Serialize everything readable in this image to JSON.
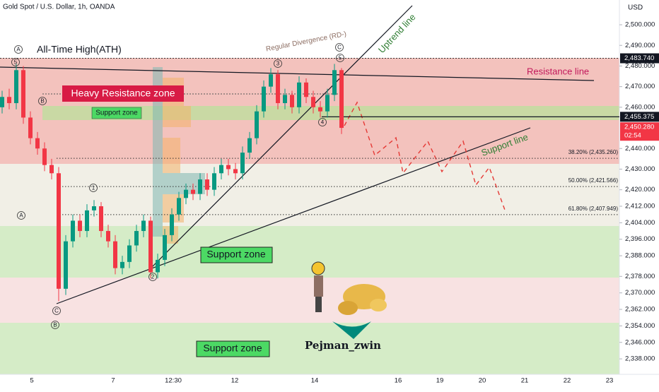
{
  "header": {
    "symbol": "Gold Spot / U.S. Dollar, 1h, OANDA",
    "currency": "USD"
  },
  "chart_data": {
    "type": "candlestick",
    "ylim": [
      2330.5,
      2512
    ],
    "yticks": [
      {
        "value": 2500,
        "label": "2,500.000"
      },
      {
        "value": 2490,
        "label": "2,490.000"
      },
      {
        "value": 2480,
        "label": "2,480.000"
      },
      {
        "value": 2470,
        "label": "2,470.000"
      },
      {
        "value": 2460,
        "label": "2,460.000"
      },
      {
        "value": 2440,
        "label": "2,440.000"
      },
      {
        "value": 2430,
        "label": "2,430.000"
      },
      {
        "value": 2420,
        "label": "2,420.000"
      },
      {
        "value": 2412,
        "label": "2,412.000"
      },
      {
        "value": 2404,
        "label": "2,404.000"
      },
      {
        "value": 2396,
        "label": "2,396.000"
      },
      {
        "value": 2388,
        "label": "2,388.000"
      },
      {
        "value": 2378,
        "label": "2,378.000"
      },
      {
        "value": 2370,
        "label": "2,370.000"
      },
      {
        "value": 2362,
        "label": "2,362.000"
      },
      {
        "value": 2354,
        "label": "2,354.000"
      },
      {
        "value": 2346,
        "label": "2,346.000"
      },
      {
        "value": 2338,
        "label": "2,338.000"
      }
    ],
    "x_labels": [
      "5",
      "7",
      "12:30",
      "12",
      "14",
      "16",
      "19",
      "20",
      "21",
      "22",
      "23"
    ],
    "candles": {
      "open": [
        2460,
        2465,
        2462,
        2478,
        2455,
        2445,
        2440,
        2432,
        2428,
        2372,
        2395,
        2405,
        2400,
        2410,
        2412,
        2400,
        2395,
        2382,
        2385,
        2393,
        2400,
        2405,
        2380,
        2386,
        2398,
        2408,
        2416,
        2420,
        2418,
        2425,
        2420,
        2428,
        2432,
        2430,
        2428,
        2438,
        2445,
        2458,
        2470,
        2476,
        2462,
        2466,
        2460,
        2472,
        2465,
        2460,
        2458,
        2466,
        2478
      ],
      "high": [
        2468,
        2469,
        2481,
        2480,
        2458,
        2448,
        2443,
        2435,
        2431,
        2398,
        2408,
        2408,
        2413,
        2415,
        2414,
        2403,
        2398,
        2388,
        2396,
        2403,
        2408,
        2407,
        2389,
        2401,
        2411,
        2419,
        2423,
        2423,
        2428,
        2428,
        2431,
        2435,
        2435,
        2433,
        2441,
        2448,
        2461,
        2473,
        2479,
        2478,
        2469,
        2468,
        2475,
        2474,
        2468,
        2463,
        2469,
        2481,
        2479
      ],
      "low": [
        2457,
        2459,
        2459,
        2452,
        2442,
        2437,
        2429,
        2425,
        2366,
        2369,
        2392,
        2397,
        2397,
        2407,
        2397,
        2392,
        2379,
        2379,
        2382,
        2390,
        2397,
        2377,
        2377,
        2383,
        2395,
        2405,
        2413,
        2415,
        2415,
        2417,
        2417,
        2425,
        2427,
        2425,
        2425,
        2435,
        2442,
        2455,
        2467,
        2459,
        2459,
        2457,
        2457,
        2462,
        2457,
        2455,
        2455,
        2463,
        2447
      ],
      "close": [
        2465,
        2462,
        2478,
        2455,
        2445,
        2440,
        2432,
        2428,
        2372,
        2395,
        2405,
        2400,
        2410,
        2412,
        2400,
        2395,
        2382,
        2385,
        2393,
        2400,
        2405,
        2380,
        2386,
        2398,
        2408,
        2416,
        2420,
        2418,
        2425,
        2420,
        2428,
        2432,
        2430,
        2428,
        2438,
        2445,
        2458,
        2470,
        2476,
        2462,
        2466,
        2460,
        2472,
        2465,
        2460,
        2458,
        2466,
        2478,
        2450
      ]
    },
    "price_labels": [
      {
        "value": 2483.74,
        "label": "2,483.740"
      },
      {
        "value": 2455.375,
        "label": "2,455.375"
      },
      {
        "value": 2450.28,
        "label": "2,450.280"
      }
    ],
    "countdown": "02:54",
    "fib_levels": [
      {
        "value": 2435.26,
        "label": "38.20% (2,435.260)"
      },
      {
        "value": 2421.566,
        "label": "50.00% (2,421.566)"
      },
      {
        "value": 2407.949,
        "label": "61.80% (2,407.949)"
      }
    ],
    "annotations": {
      "ath": "All-Time High(ATH)",
      "heavy_resistance": "Heavy Resistance zone",
      "support_zone_small": "Support zone",
      "support_zone_mid": "Support zone",
      "support_zone_low": "Support zone",
      "resistance_line": "Resistance line",
      "uptrend_line": "Uptrend line",
      "support_line": "Support line",
      "divergence": "Regular Divergence (RD-)",
      "author": "Pejman_zwin"
    },
    "waves": [
      "5",
      "B",
      "A",
      "1",
      "2",
      "3",
      "4",
      "5",
      "C",
      "C",
      "B",
      "A"
    ]
  }
}
